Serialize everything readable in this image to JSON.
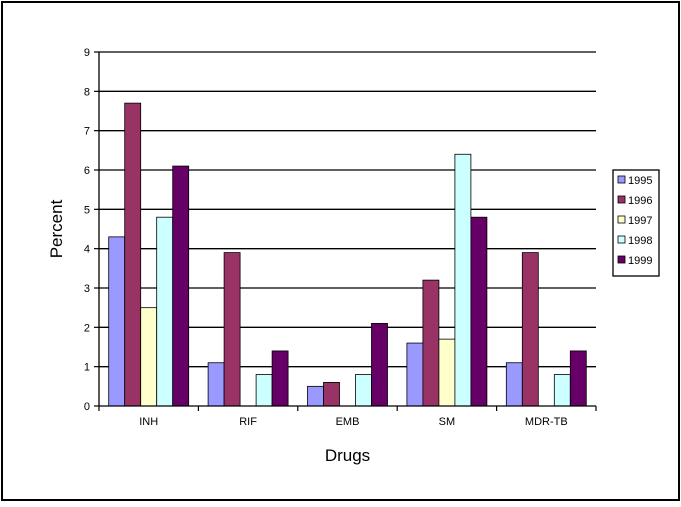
{
  "chart_data": {
    "type": "bar",
    "title": "",
    "xlabel": "Drugs",
    "ylabel": "Percent",
    "categories": [
      "INH",
      "RIF",
      "EMB",
      "SM",
      "MDR-TB"
    ],
    "ylim": [
      0,
      9
    ],
    "yticks": [
      "0",
      "1",
      "2",
      "3",
      "4",
      "5",
      "6",
      "7",
      "8",
      "9"
    ],
    "grid": true,
    "legend_position": "right",
    "series": [
      {
        "name": "1995",
        "values": [
          4.3,
          1.1,
          0.5,
          1.6,
          1.1
        ],
        "color": "#9999FF"
      },
      {
        "name": "1996",
        "values": [
          7.7,
          3.9,
          0.6,
          3.2,
          3.9
        ],
        "color": "#993366"
      },
      {
        "name": "1997",
        "values": [
          2.5,
          0,
          0,
          1.7,
          0
        ],
        "color": "#FFFFCC"
      },
      {
        "name": "1998",
        "values": [
          4.8,
          0.8,
          0.8,
          6.4,
          0.8
        ],
        "color": "#CCFFFF"
      },
      {
        "name": "1999",
        "values": [
          6.1,
          1.4,
          2.1,
          4.8,
          1.4
        ],
        "color": "#660066"
      }
    ]
  }
}
